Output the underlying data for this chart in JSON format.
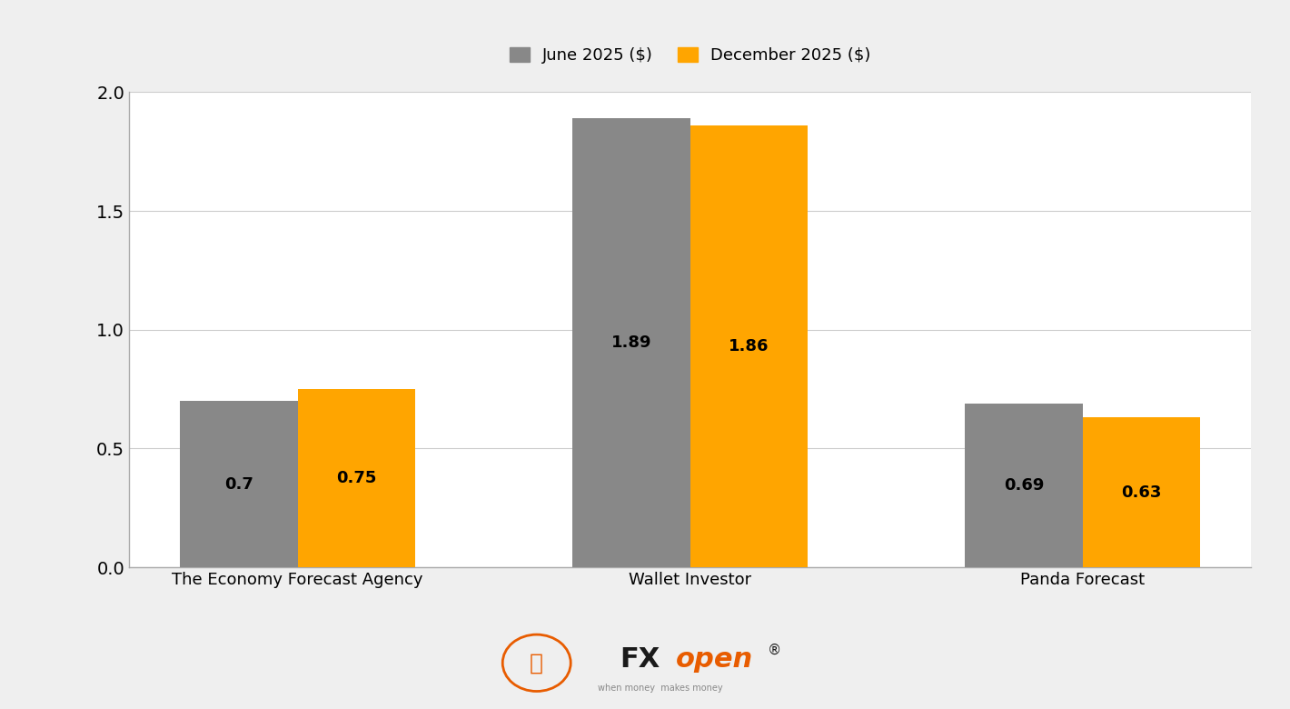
{
  "categories": [
    "The Economy Forecast Agency",
    "Wallet Investor",
    "Panda Forecast"
  ],
  "june_values": [
    0.7,
    1.89,
    0.69
  ],
  "december_values": [
    0.75,
    1.86,
    0.63
  ],
  "june_color": "#888888",
  "december_color": "#FFA500",
  "june_label": "June 2025 ($)",
  "december_label": "December 2025 ($)",
  "ylim": [
    0.0,
    2.0
  ],
  "yticks": [
    0.0,
    0.5,
    1.0,
    1.5,
    2.0
  ],
  "bar_width": 0.3,
  "background_color": "#efefef",
  "plot_bg_color": "#ffffff",
  "label_fontsize": 13,
  "tick_fontsize": 14,
  "legend_fontsize": 13,
  "value_fontsize": 13,
  "grid_color": "#cccccc",
  "fxopen_black": "#1a1a1a",
  "fxopen_orange": "#E85C00",
  "logo_text_small": "when money  makes money"
}
